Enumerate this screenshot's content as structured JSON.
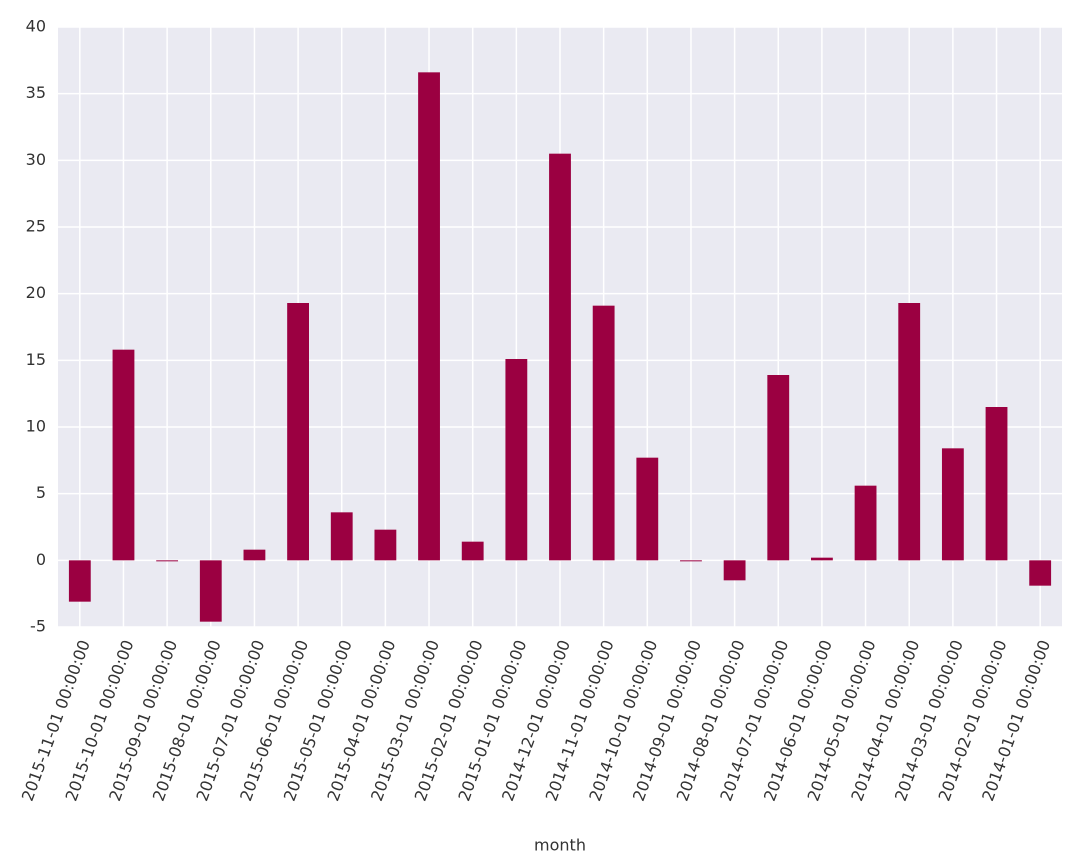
{
  "chart_data": {
    "type": "bar",
    "x_label": "month",
    "categories": [
      "2015-11-01 00:00:00",
      "2015-10-01 00:00:00",
      "2015-09-01 00:00:00",
      "2015-08-01 00:00:00",
      "2015-07-01 00:00:00",
      "2015-06-01 00:00:00",
      "2015-05-01 00:00:00",
      "2015-04-01 00:00:00",
      "2015-03-01 00:00:00",
      "2015-02-01 00:00:00",
      "2015-01-01 00:00:00",
      "2014-12-01 00:00:00",
      "2014-11-01 00:00:00",
      "2014-10-01 00:00:00",
      "2014-09-01 00:00:00",
      "2014-08-01 00:00:00",
      "2014-07-01 00:00:00",
      "2014-06-01 00:00:00",
      "2014-05-01 00:00:00",
      "2014-04-01 00:00:00",
      "2014-03-01 00:00:00",
      "2014-02-01 00:00:00",
      "2014-01-01 00:00:00"
    ],
    "values": [
      -3.1,
      15.8,
      0,
      -4.6,
      0.8,
      19.3,
      3.6,
      2.3,
      36.6,
      1.4,
      15.1,
      30.5,
      19.1,
      7.7,
      0,
      -1.5,
      13.9,
      0.2,
      5.6,
      19.3,
      8.4,
      11.5,
      -1.9
    ],
    "color": "#9b0041",
    "ylim": [
      -5,
      40
    ],
    "yticks": [
      -5,
      0,
      5,
      10,
      15,
      20,
      25,
      30,
      35,
      40
    ],
    "grid": true
  }
}
